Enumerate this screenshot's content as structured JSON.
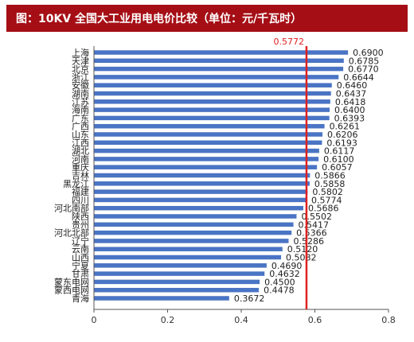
{
  "title": "图：10KV 全国大工业用电电价比较（单位：元/千瓦时）",
  "chart_data": {
    "type": "bar",
    "orientation": "horizontal",
    "categories": [
      "上海",
      "天津",
      "北京",
      "浙江",
      "安徽",
      "湖南",
      "江苏",
      "海南",
      "广东",
      "广西",
      "山东",
      "江西",
      "湖北",
      "河南",
      "重庆",
      "吉林",
      "黑龙江",
      "福建",
      "四川",
      "河北南部",
      "陕西",
      "贵州",
      "河北北部",
      "辽宁",
      "云南",
      "山西",
      "宁夏",
      "甘肃",
      "蒙东电网",
      "蒙西电网",
      "青海"
    ],
    "values": [
      0.69,
      0.6785,
      0.677,
      0.6644,
      0.646,
      0.6437,
      0.6418,
      0.64,
      0.6393,
      0.6261,
      0.6206,
      0.6193,
      0.6117,
      0.61,
      0.6057,
      0.5866,
      0.5858,
      0.5802,
      0.5774,
      0.5686,
      0.5502,
      0.5417,
      0.5366,
      0.5286,
      0.512,
      0.5082,
      0.469,
      0.4632,
      0.45,
      0.4478,
      0.3672
    ],
    "value_labels": [
      "0.6900",
      "0.6785",
      "0.6770",
      "0.6644",
      "0.6460",
      "0.6437",
      "0.6418",
      "0.6400",
      "0.6393",
      "0.6261",
      "0.6206",
      "0.6193",
      "0.6117",
      "0.6100",
      "0.6057",
      "0.5866",
      "0.5858",
      "0.5802",
      "0.5774",
      "0.5686",
      "0.5502",
      "0.5417",
      "0.5366",
      "0.5286",
      "0.5120",
      "0.5082",
      "0.4690",
      "0.4632",
      "0.4500",
      "0.4478",
      "0.3672"
    ],
    "xlim": [
      0,
      0.8
    ],
    "x_ticks": [
      0,
      0.2,
      0.4,
      0.6,
      0.8
    ],
    "x_tick_labels": [
      "0",
      "0.2",
      "0.4",
      "0.6",
      "0.8"
    ],
    "reference_line": {
      "value": 0.5772,
      "label": "0.5772",
      "color": "#e02020"
    },
    "bar_color": "#4a74c4",
    "grid": false
  }
}
